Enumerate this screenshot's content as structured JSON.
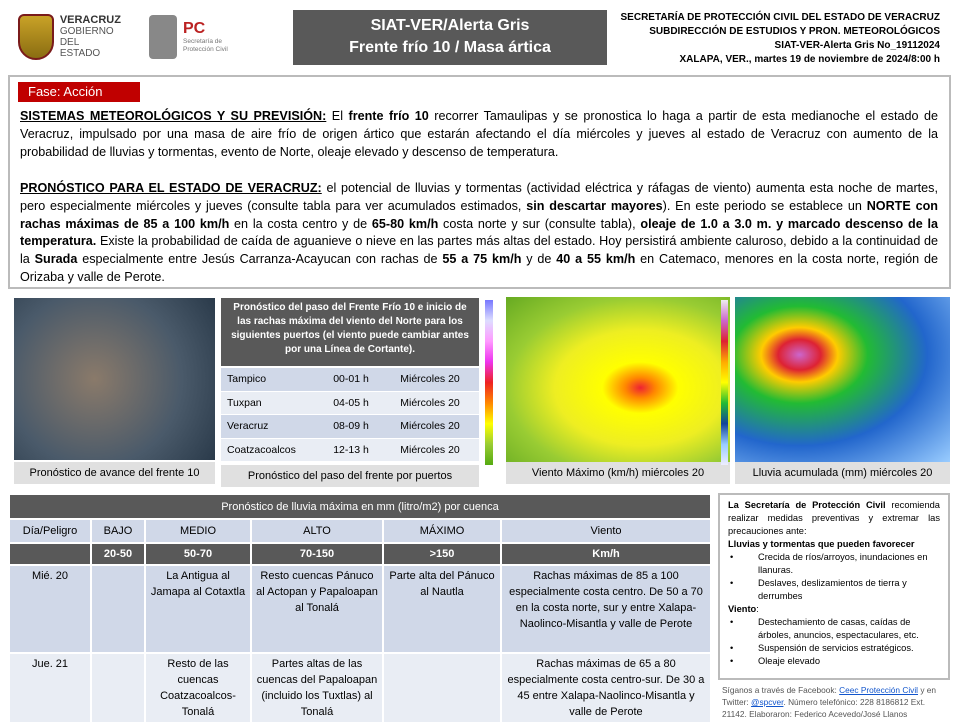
{
  "header": {
    "gob_logo": [
      "VERACRUZ",
      "GOBIERNO",
      "DEL ESTADO"
    ],
    "pc_logo": {
      "abbr": "PC",
      "name": "Secretaría de Protección Civil"
    },
    "title_line1": "SIAT-VER/Alerta Gris",
    "title_line2": "Frente frío 10 / Masa ártica",
    "org1": "SECRETARÍA DE PROTECCIÓN CIVIL DEL ESTADO DE VERACRUZ",
    "org2": "SUBDIRECCIÓN DE ESTUDIOS Y PRON. METEOROLÓGICOS",
    "alert_no": "SIAT-VER-Alerta Gris No_19112024",
    "place_date": "XALAPA, VER., martes 19 de noviembre de 2024/8:00 h"
  },
  "phase": "Fase: Acción",
  "systems": {
    "heading": "SISTEMAS METEOROLÓGICOS Y SU PREVISIÓN:",
    "t1": " El ",
    "b1": "frente frío 10",
    "t2": " recorrer Tamaulipas y se pronostica lo haga a partir de esta medianoche el estado de Veracruz, impulsado por una masa de aire frío de origen ártico que estarán afectando el día miércoles y jueves al estado de Veracruz con aumento de la probabilidad de lluvias y tormentas, evento de Norte, oleaje elevado y descenso de temperatura."
  },
  "forecast": {
    "heading": "PRONÓSTICO PARA EL ESTADO DE VERACRUZ:",
    "t1": " el potencial de lluvias y tormentas (actividad eléctrica y ráfagas de viento) aumenta esta noche de martes, pero especialmente miércoles y jueves (consulte tabla para ver acumulados estimados, ",
    "b1": "sin descartar mayores",
    "t2": "). En este periodo se establece un ",
    "b2": "NORTE con rachas máximas de 85 a 100 km/h",
    "t3": " en la costa centro y de ",
    "b3": "65-80 km/h",
    "t4": " costa norte y sur (consulte tabla), ",
    "b4": "oleaje de 1.0 a 3.0 m. y marcado descenso de la temperatura.",
    "t5": " Existe la probabilidad de caída de aguanieve o nieve en las partes más altas del estado. Hoy persistirá ambiente caluroso, debido a la continuidad de la ",
    "b5": "Surada",
    "t6": " especialmente entre Jesús Carranza-Acayucan con rachas de ",
    "b6": "55 a 75 km/h",
    "t7": " y de ",
    "b7": "40 a 55 km/h",
    "t8": " en Catemaco, menores en la costa norte, región de Orizaba y valle de Perote."
  },
  "images": {
    "satellite_caption": "Pronóstico de avance del frente 10",
    "wind_caption": "Viento Máximo (km/h) miércoles 20",
    "rain_caption": "Lluvia acumulada (mm) miércoles 20"
  },
  "ports": {
    "heading": "Pronóstico del paso del Frente Frío 10 e inicio de las rachas máxima  del viento del Norte para los siguientes puertos (el viento puede cambiar antes por una Línea de Cortante).",
    "rows": [
      [
        "Tampico",
        "00-01 h",
        "Miércoles 20"
      ],
      [
        "Tuxpan",
        "04-05 h",
        "Miércoles 20"
      ],
      [
        "Veracruz",
        "08-09 h",
        "Miércoles 20"
      ],
      [
        "Coatzacoalcos",
        "12-13 h",
        "Miércoles 20"
      ]
    ],
    "caption": "Pronóstico del paso del frente por puertos"
  },
  "rain_table": {
    "title": "Pronóstico de lluvia máxima en mm (litro/m2) por cuenca",
    "headers": [
      "Día/Peligro",
      "BAJO",
      "MEDIO",
      "ALTO",
      "MÁXIMO",
      "Viento"
    ],
    "ranges": [
      "",
      "20-50",
      "50-70",
      "70-150",
      ">150",
      "Km/h"
    ],
    "rows": [
      [
        "Mié. 20",
        "",
        "La Antigua al Jamapa al Cotaxtla",
        "Resto cuencas Pánuco al Actopan y Papaloapan al Tonalá",
        "Parte alta del Pánuco al Nautla",
        "Rachas máximas de 85 a 100 especialmente costa centro. De 50 a 70 en la costa norte, sur y entre Xalapa-Naolinco-Misantla y valle de Perote"
      ],
      [
        "Jue. 21",
        "",
        "Resto de las cuencas Coatzacoalcos-Tonalá",
        "Partes altas de las cuencas del Papaloapan (incluido los Tuxtlas) al Tonalá",
        "",
        "Rachas máximas de 65 a 80 especialmente costa centro-sur. De 30 a 45 entre Xalapa-Naolinco-Misantla y valle de Perote"
      ]
    ]
  },
  "recommendations": {
    "intro_bold": "La Secretaría de Protección Civil",
    "intro": " recomienda realizar medidas preventivas y extremar las precauciones ante:",
    "rain_heading": "Lluvias y tormentas que pueden favorecer",
    "rain_items": [
      "Crecida de ríos/arroyos, inundaciones en llanuras.",
      "Deslaves, deslizamientos de tierra y derrumbes"
    ],
    "wind_heading": "Viento",
    "wind_items": [
      "Destechamiento de casas, caídas de árboles, anuncios, espectaculares, etc.",
      "Suspensión de servicios estratégicos.",
      "Oleaje elevado"
    ]
  },
  "footer": {
    "t1": "Síganos a través de Facebook: ",
    "facebook": "Ceec Protección Civil",
    "t2": "  y en Twitter: ",
    "twitter": "@spcver",
    "t3": ". Número telefónico:  228 8186812 Ext. 21142. Elaboraron: Federico Acevedo/José Llanos"
  }
}
